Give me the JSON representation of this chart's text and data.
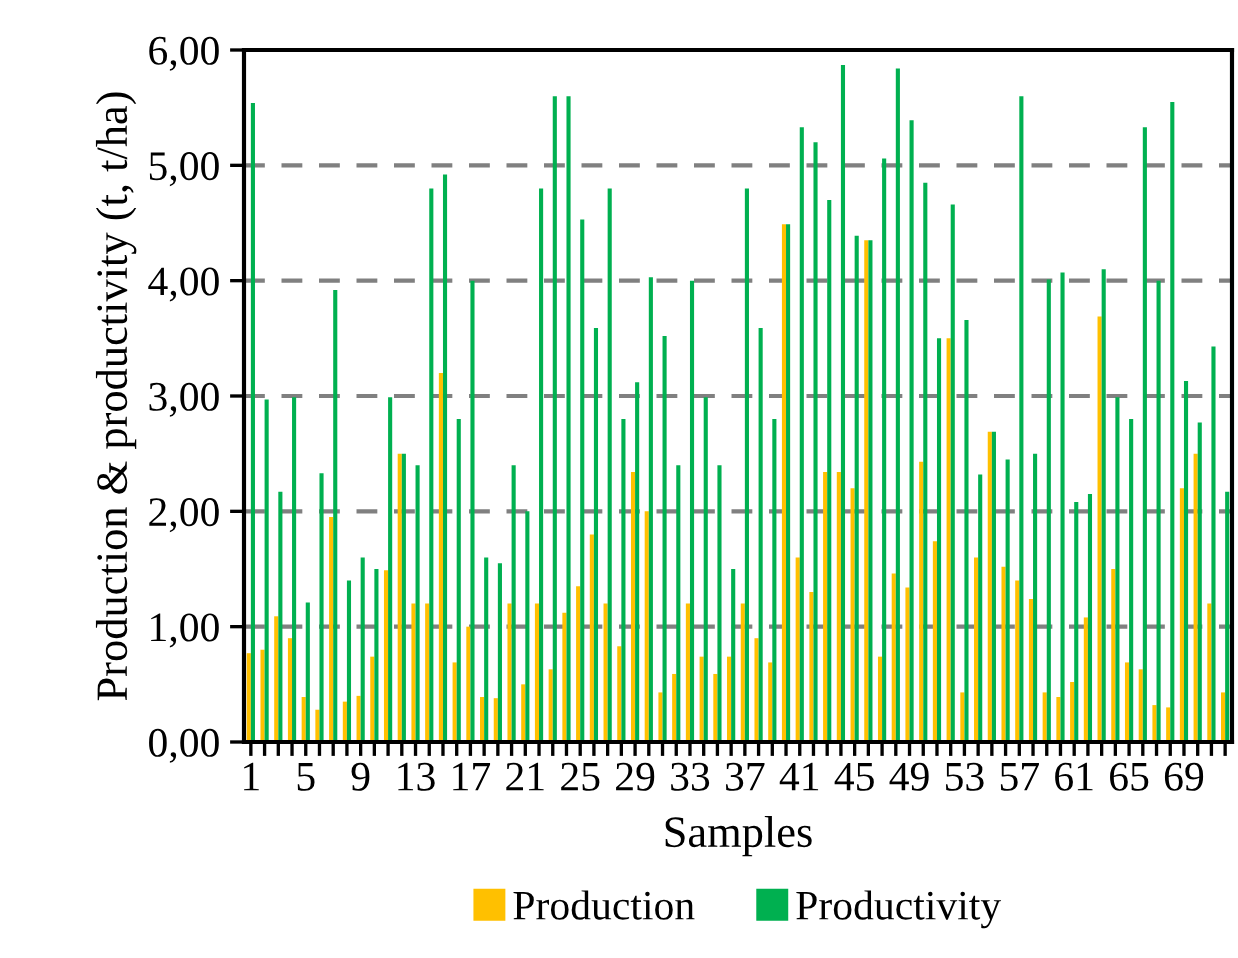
{
  "chart_data": {
    "type": "bar",
    "xlabel": "Samples",
    "ylabel": "Production & productivity (t, t/ha)",
    "categories": [
      "1",
      null,
      null,
      null,
      "5",
      null,
      null,
      null,
      "9",
      null,
      null,
      null,
      "13",
      null,
      null,
      null,
      "17",
      null,
      null,
      null,
      "21",
      null,
      null,
      null,
      "25",
      null,
      null,
      null,
      "29",
      null,
      null,
      null,
      "33",
      null,
      null,
      null,
      "37",
      null,
      null,
      null,
      "41",
      null,
      null,
      null,
      "45",
      null,
      null,
      null,
      "49",
      null,
      null,
      null,
      "53",
      null,
      null,
      null,
      "57",
      null,
      null,
      null,
      "61",
      null,
      null,
      null,
      "65",
      null,
      null,
      null,
      "69",
      null,
      null,
      null
    ],
    "series": [
      {
        "name": "Production",
        "color": "#ffc000",
        "values": [
          0.77,
          0.8,
          1.09,
          0.9,
          0.39,
          0.28,
          1.95,
          0.35,
          0.4,
          0.74,
          1.49,
          2.5,
          1.2,
          1.2,
          3.2,
          0.69,
          1.0,
          0.39,
          0.38,
          1.2,
          0.5,
          1.2,
          0.63,
          1.12,
          1.35,
          1.8,
          1.2,
          0.83,
          2.34,
          2.0,
          0.43,
          0.59,
          1.2,
          0.74,
          0.59,
          0.74,
          1.2,
          0.9,
          0.69,
          4.49,
          1.6,
          1.3,
          2.34,
          2.34,
          2.2,
          4.35,
          0.74,
          1.46,
          1.34,
          2.43,
          1.74,
          3.5,
          0.43,
          1.6,
          2.69,
          1.52,
          1.4,
          1.24,
          0.43,
          0.39,
          0.52,
          1.08,
          3.69,
          1.5,
          0.69,
          0.63,
          0.32,
          0.3,
          2.2,
          2.5,
          1.2,
          0.43
        ]
      },
      {
        "name": "Productivity",
        "color": "#00b050",
        "values": [
          5.54,
          2.97,
          2.17,
          2.99,
          1.21,
          2.33,
          3.92,
          1.4,
          1.6,
          1.5,
          2.99,
          2.5,
          2.4,
          4.8,
          4.92,
          2.8,
          4.0,
          1.6,
          1.55,
          2.4,
          2.0,
          4.8,
          5.6,
          5.6,
          4.53,
          3.59,
          4.8,
          2.8,
          3.12,
          4.03,
          3.52,
          2.4,
          4.0,
          2.99,
          2.4,
          1.5,
          4.8,
          3.59,
          2.8,
          4.49,
          5.33,
          5.2,
          4.7,
          5.87,
          4.39,
          4.35,
          5.06,
          5.84,
          5.39,
          4.85,
          3.5,
          4.66,
          3.66,
          2.32,
          2.69,
          2.45,
          5.6,
          2.5,
          4.01,
          4.07,
          2.08,
          2.15,
          4.1,
          2.99,
          2.8,
          5.33,
          4.0,
          5.55,
          3.13,
          2.77,
          3.43,
          2.17
        ]
      }
    ],
    "ylim": [
      0,
      6
    ],
    "yticks": [
      {
        "value": 0,
        "label": "0,00"
      },
      {
        "value": 1,
        "label": "1,00"
      },
      {
        "value": 2,
        "label": "2,00"
      },
      {
        "value": 3,
        "label": "3,00"
      },
      {
        "value": 4,
        "label": "4,00"
      },
      {
        "value": 5,
        "label": "5,00"
      },
      {
        "value": 6,
        "label": "6,00"
      }
    ],
    "grid": "y",
    "legend": "bottom"
  }
}
